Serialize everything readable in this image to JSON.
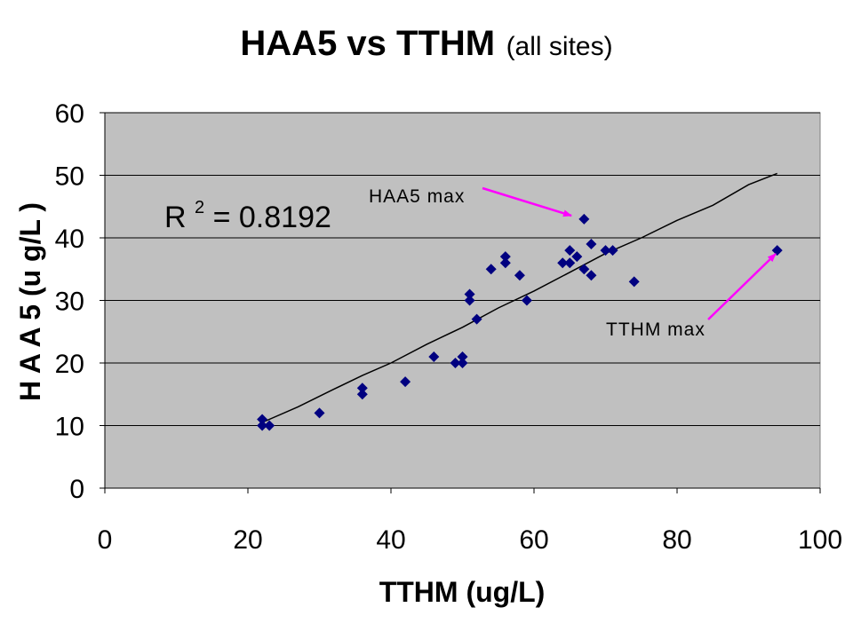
{
  "chart_data": {
    "type": "scatter",
    "title": "HAA5 vs TTHM",
    "subtitle": "(all sites)",
    "xlabel": "TTHM (ug/L)",
    "ylabel": "H A A 5 (u g/L )",
    "xlim": [
      0,
      100
    ],
    "ylim": [
      0,
      60
    ],
    "xticks": [
      "0",
      "20",
      "40",
      "60",
      "80",
      "100"
    ],
    "yticks": [
      "0",
      "10",
      "20",
      "30",
      "40",
      "50",
      "60"
    ],
    "xtick_values": [
      0,
      20,
      40,
      60,
      80,
      100
    ],
    "ytick_values": [
      0,
      10,
      20,
      30,
      40,
      50,
      60
    ],
    "grid": "horizontal",
    "plot_background": "#c0c0c0",
    "marker_color": "#000080",
    "marker_shape": "diamond",
    "series": [
      {
        "points": [
          [
            22,
            11
          ],
          [
            22,
            10
          ],
          [
            23,
            10
          ],
          [
            30,
            12
          ],
          [
            36,
            16
          ],
          [
            36,
            15
          ],
          [
            42,
            17
          ],
          [
            46,
            21
          ],
          [
            49,
            20
          ],
          [
            50,
            21
          ],
          [
            50,
            20
          ],
          [
            51,
            31
          ],
          [
            51,
            30
          ],
          [
            52,
            27
          ],
          [
            54,
            35
          ],
          [
            56,
            37
          ],
          [
            56,
            36
          ],
          [
            58,
            34
          ],
          [
            59,
            30
          ],
          [
            64,
            36
          ],
          [
            65,
            38
          ],
          [
            65,
            36
          ],
          [
            66,
            37
          ],
          [
            67,
            43
          ],
          [
            67,
            35
          ],
          [
            68,
            39
          ],
          [
            68,
            34
          ],
          [
            70,
            38
          ],
          [
            71,
            38
          ],
          [
            74,
            33
          ],
          [
            94,
            38
          ]
        ]
      }
    ],
    "trendline": {
      "points": [
        [
          22,
          10.5
        ],
        [
          27,
          13
        ],
        [
          32,
          15.8
        ],
        [
          36,
          18
        ],
        [
          40,
          20
        ],
        [
          45,
          23
        ],
        [
          50,
          25.7
        ],
        [
          55,
          28.8
        ],
        [
          60,
          31.5
        ],
        [
          65,
          34.5
        ],
        [
          70,
          37.5
        ],
        [
          75,
          40
        ],
        [
          80,
          42.8
        ],
        [
          85,
          45.2
        ],
        [
          90,
          48.5
        ],
        [
          94,
          50.3
        ]
      ],
      "color": "#000000"
    },
    "annotations": {
      "r2_prefix": "R",
      "r2_exp": "2",
      "r2_value": " = 0.8192",
      "haa5_max": "HAA5 max",
      "tthm_max": "TTHM max",
      "arrow_color": "#ff00ff"
    }
  }
}
